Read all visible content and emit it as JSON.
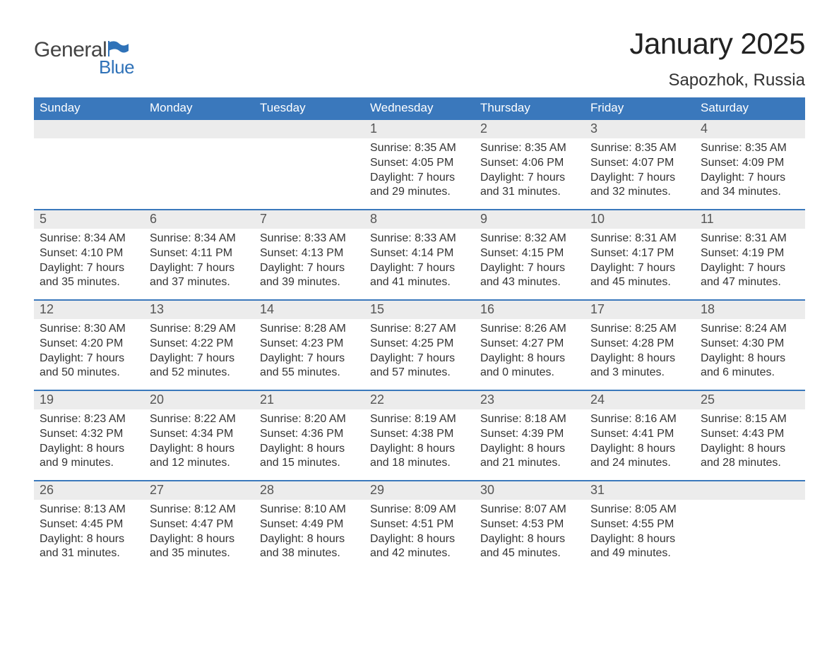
{
  "brand": {
    "main": "General",
    "sub": "Blue",
    "flag_color": "#2f72b8"
  },
  "title": "January 2025",
  "location": "Sapozhok, Russia",
  "colors": {
    "header_bg": "#3a78bc",
    "header_text": "#ffffff",
    "daynum_bg": "#ececec",
    "week_border": "#3a78bc",
    "body_text": "#333333",
    "background": "#ffffff"
  },
  "daysOfWeek": [
    "Sunday",
    "Monday",
    "Tuesday",
    "Wednesday",
    "Thursday",
    "Friday",
    "Saturday"
  ],
  "labels": {
    "sunrise": "Sunrise:",
    "sunset": "Sunset:",
    "daylight": "Daylight:"
  },
  "weeks": [
    [
      null,
      null,
      null,
      {
        "n": "1",
        "sr": "8:35 AM",
        "ss": "4:05 PM",
        "dl": "7 hours and 29 minutes."
      },
      {
        "n": "2",
        "sr": "8:35 AM",
        "ss": "4:06 PM",
        "dl": "7 hours and 31 minutes."
      },
      {
        "n": "3",
        "sr": "8:35 AM",
        "ss": "4:07 PM",
        "dl": "7 hours and 32 minutes."
      },
      {
        "n": "4",
        "sr": "8:35 AM",
        "ss": "4:09 PM",
        "dl": "7 hours and 34 minutes."
      }
    ],
    [
      {
        "n": "5",
        "sr": "8:34 AM",
        "ss": "4:10 PM",
        "dl": "7 hours and 35 minutes."
      },
      {
        "n": "6",
        "sr": "8:34 AM",
        "ss": "4:11 PM",
        "dl": "7 hours and 37 minutes."
      },
      {
        "n": "7",
        "sr": "8:33 AM",
        "ss": "4:13 PM",
        "dl": "7 hours and 39 minutes."
      },
      {
        "n": "8",
        "sr": "8:33 AM",
        "ss": "4:14 PM",
        "dl": "7 hours and 41 minutes."
      },
      {
        "n": "9",
        "sr": "8:32 AM",
        "ss": "4:15 PM",
        "dl": "7 hours and 43 minutes."
      },
      {
        "n": "10",
        "sr": "8:31 AM",
        "ss": "4:17 PM",
        "dl": "7 hours and 45 minutes."
      },
      {
        "n": "11",
        "sr": "8:31 AM",
        "ss": "4:19 PM",
        "dl": "7 hours and 47 minutes."
      }
    ],
    [
      {
        "n": "12",
        "sr": "8:30 AM",
        "ss": "4:20 PM",
        "dl": "7 hours and 50 minutes."
      },
      {
        "n": "13",
        "sr": "8:29 AM",
        "ss": "4:22 PM",
        "dl": "7 hours and 52 minutes."
      },
      {
        "n": "14",
        "sr": "8:28 AM",
        "ss": "4:23 PM",
        "dl": "7 hours and 55 minutes."
      },
      {
        "n": "15",
        "sr": "8:27 AM",
        "ss": "4:25 PM",
        "dl": "7 hours and 57 minutes."
      },
      {
        "n": "16",
        "sr": "8:26 AM",
        "ss": "4:27 PM",
        "dl": "8 hours and 0 minutes."
      },
      {
        "n": "17",
        "sr": "8:25 AM",
        "ss": "4:28 PM",
        "dl": "8 hours and 3 minutes."
      },
      {
        "n": "18",
        "sr": "8:24 AM",
        "ss": "4:30 PM",
        "dl": "8 hours and 6 minutes."
      }
    ],
    [
      {
        "n": "19",
        "sr": "8:23 AM",
        "ss": "4:32 PM",
        "dl": "8 hours and 9 minutes."
      },
      {
        "n": "20",
        "sr": "8:22 AM",
        "ss": "4:34 PM",
        "dl": "8 hours and 12 minutes."
      },
      {
        "n": "21",
        "sr": "8:20 AM",
        "ss": "4:36 PM",
        "dl": "8 hours and 15 minutes."
      },
      {
        "n": "22",
        "sr": "8:19 AM",
        "ss": "4:38 PM",
        "dl": "8 hours and 18 minutes."
      },
      {
        "n": "23",
        "sr": "8:18 AM",
        "ss": "4:39 PM",
        "dl": "8 hours and 21 minutes."
      },
      {
        "n": "24",
        "sr": "8:16 AM",
        "ss": "4:41 PM",
        "dl": "8 hours and 24 minutes."
      },
      {
        "n": "25",
        "sr": "8:15 AM",
        "ss": "4:43 PM",
        "dl": "8 hours and 28 minutes."
      }
    ],
    [
      {
        "n": "26",
        "sr": "8:13 AM",
        "ss": "4:45 PM",
        "dl": "8 hours and 31 minutes."
      },
      {
        "n": "27",
        "sr": "8:12 AM",
        "ss": "4:47 PM",
        "dl": "8 hours and 35 minutes."
      },
      {
        "n": "28",
        "sr": "8:10 AM",
        "ss": "4:49 PM",
        "dl": "8 hours and 38 minutes."
      },
      {
        "n": "29",
        "sr": "8:09 AM",
        "ss": "4:51 PM",
        "dl": "8 hours and 42 minutes."
      },
      {
        "n": "30",
        "sr": "8:07 AM",
        "ss": "4:53 PM",
        "dl": "8 hours and 45 minutes."
      },
      {
        "n": "31",
        "sr": "8:05 AM",
        "ss": "4:55 PM",
        "dl": "8 hours and 49 minutes."
      },
      null
    ]
  ]
}
